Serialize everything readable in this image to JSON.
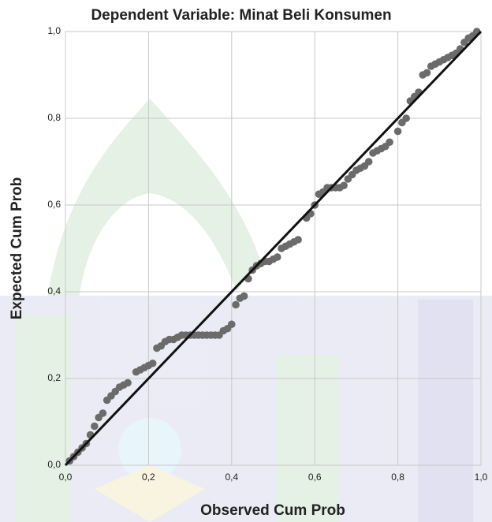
{
  "chart_data": {
    "type": "scatter",
    "title": "Dependent Variable: Minat Beli Konsumen",
    "xlabel": "Observed Cum Prob",
    "ylabel": "Expected Cum Prob",
    "x": [
      0.01,
      0.02,
      0.03,
      0.04,
      0.05,
      0.06,
      0.07,
      0.08,
      0.09,
      0.1,
      0.11,
      0.12,
      0.13,
      0.14,
      0.15,
      0.17,
      0.18,
      0.19,
      0.2,
      0.21,
      0.22,
      0.23,
      0.24,
      0.25,
      0.26,
      0.27,
      0.28,
      0.29,
      0.3,
      0.31,
      0.32,
      0.33,
      0.34,
      0.35,
      0.36,
      0.37,
      0.38,
      0.39,
      0.4,
      0.41,
      0.42,
      0.43,
      0.44,
      0.45,
      0.46,
      0.47,
      0.48,
      0.49,
      0.5,
      0.51,
      0.52,
      0.53,
      0.54,
      0.55,
      0.56,
      0.58,
      0.59,
      0.6,
      0.61,
      0.62,
      0.63,
      0.64,
      0.65,
      0.66,
      0.67,
      0.68,
      0.69,
      0.7,
      0.71,
      0.72,
      0.73,
      0.74,
      0.75,
      0.76,
      0.77,
      0.78,
      0.8,
      0.81,
      0.82,
      0.83,
      0.84,
      0.85,
      0.86,
      0.87,
      0.88,
      0.89,
      0.9,
      0.91,
      0.92,
      0.93,
      0.94,
      0.95,
      0.96,
      0.97,
      0.98,
      0.99
    ],
    "values": [
      0.01,
      0.02,
      0.03,
      0.04,
      0.05,
      0.07,
      0.09,
      0.11,
      0.12,
      0.15,
      0.16,
      0.17,
      0.18,
      0.185,
      0.19,
      0.215,
      0.22,
      0.225,
      0.23,
      0.235,
      0.27,
      0.275,
      0.285,
      0.29,
      0.29,
      0.295,
      0.3,
      0.3,
      0.3,
      0.3,
      0.3,
      0.3,
      0.3,
      0.3,
      0.3,
      0.3,
      0.31,
      0.315,
      0.325,
      0.37,
      0.385,
      0.39,
      0.43,
      0.45,
      0.46,
      0.465,
      0.47,
      0.47,
      0.475,
      0.48,
      0.5,
      0.505,
      0.51,
      0.515,
      0.52,
      0.57,
      0.58,
      0.6,
      0.625,
      0.63,
      0.64,
      0.64,
      0.64,
      0.64,
      0.645,
      0.66,
      0.67,
      0.68,
      0.685,
      0.69,
      0.7,
      0.72,
      0.725,
      0.73,
      0.735,
      0.745,
      0.77,
      0.79,
      0.8,
      0.84,
      0.85,
      0.86,
      0.9,
      0.905,
      0.92,
      0.925,
      0.93,
      0.935,
      0.94,
      0.945,
      0.95,
      0.96,
      0.975,
      0.985,
      0.99,
      1.0
    ],
    "color": "#6b6b6b",
    "reference_line": {
      "x": [
        0,
        1
      ],
      "y": [
        0,
        1
      ],
      "color": "#111111"
    },
    "xlim": [
      0,
      1
    ],
    "ylim": [
      0,
      1
    ],
    "xticks": [
      {
        "value": 0,
        "label": "0,0"
      },
      {
        "value": 0.2,
        "label": "0,2"
      },
      {
        "value": 0.4,
        "label": "0,4"
      },
      {
        "value": 0.6,
        "label": "0,6"
      },
      {
        "value": 0.8,
        "label": "0,8"
      },
      {
        "value": 1,
        "label": "1,0"
      }
    ],
    "yticks": [
      {
        "value": 0,
        "label": "0,0"
      },
      {
        "value": 0.2,
        "label": "0,2"
      },
      {
        "value": 0.4,
        "label": "0,4"
      },
      {
        "value": 0.6,
        "label": "0,6"
      },
      {
        "value": 0.8,
        "label": "0,8"
      },
      {
        "value": 1,
        "label": "1,0"
      }
    ],
    "grid": true
  }
}
